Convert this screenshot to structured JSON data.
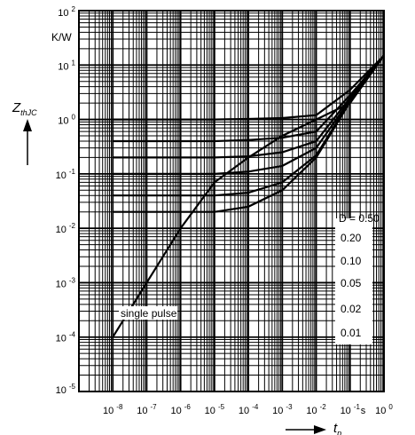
{
  "chart_data": {
    "type": "line",
    "title": "",
    "xlabel": "t",
    "xlabel_subscript": "p",
    "xunit": "s",
    "ylabel": "Z",
    "ylabel_subscript": "thJC",
    "yunit": "K/W",
    "x_scale": "log",
    "y_scale": "log",
    "xlim": [
      1e-09,
      1
    ],
    "ylim": [
      1e-05,
      100
    ],
    "grid": true,
    "x_ticks": [
      "10^-8",
      "10^-7",
      "10^-6",
      "10^-5",
      "10^-4",
      "10^-3",
      "10^-2",
      "10^-1",
      "10^0"
    ],
    "y_ticks": [
      "10^-5",
      "10^-4",
      "10^-3",
      "10^-2",
      "10^-1",
      "10^0",
      "10^1",
      "10^2"
    ],
    "legend_title": "D = 0.50",
    "legend_entries": [
      "0.20",
      "0.10",
      "0.05",
      "0.02",
      "0.01"
    ],
    "annotation": "single pulse",
    "series": [
      {
        "name": "0.50",
        "x": [
          1e-08,
          1e-07,
          1e-06,
          1e-05,
          0.0001,
          0.001,
          0.01,
          0.1,
          1
        ],
        "y": [
          1.0,
          1.0,
          1.0,
          1.0,
          1.02,
          1.06,
          1.2,
          3.5,
          15
        ]
      },
      {
        "name": "0.20",
        "x": [
          1e-08,
          1e-07,
          1e-06,
          1e-05,
          0.0001,
          0.001,
          0.01,
          0.1,
          1
        ],
        "y": [
          0.4,
          0.4,
          0.4,
          0.4,
          0.42,
          0.46,
          0.6,
          2.8,
          15
        ]
      },
      {
        "name": "0.10",
        "x": [
          1e-08,
          1e-07,
          1e-06,
          1e-05,
          0.0001,
          0.001,
          0.01,
          0.1,
          1
        ],
        "y": [
          0.2,
          0.2,
          0.2,
          0.2,
          0.21,
          0.25,
          0.4,
          2.5,
          15
        ]
      },
      {
        "name": "0.05",
        "x": [
          1e-08,
          1e-07,
          1e-06,
          1e-05,
          0.0001,
          0.001,
          0.01,
          0.1,
          1
        ],
        "y": [
          0.1,
          0.1,
          0.1,
          0.1,
          0.11,
          0.14,
          0.3,
          2.3,
          15
        ]
      },
      {
        "name": "0.02",
        "x": [
          1e-08,
          1e-07,
          1e-06,
          1e-05,
          0.0001,
          0.001,
          0.01,
          0.1,
          1
        ],
        "y": [
          0.04,
          0.04,
          0.04,
          0.04,
          0.045,
          0.07,
          0.22,
          2.2,
          15
        ]
      },
      {
        "name": "0.01",
        "x": [
          1e-08,
          1e-07,
          1e-06,
          1e-05,
          0.0001,
          0.001,
          0.01,
          0.1,
          1
        ],
        "y": [
          0.02,
          0.02,
          0.02,
          0.02,
          0.025,
          0.05,
          0.2,
          2.1,
          15
        ]
      },
      {
        "name": "single pulse",
        "x": [
          1e-08,
          1e-07,
          1e-06,
          1e-05,
          0.0001,
          0.001,
          0.01,
          0.1,
          1
        ],
        "y": [
          0.0001,
          0.001,
          0.01,
          0.07,
          0.2,
          0.5,
          1.0,
          2.0,
          15
        ]
      }
    ]
  }
}
